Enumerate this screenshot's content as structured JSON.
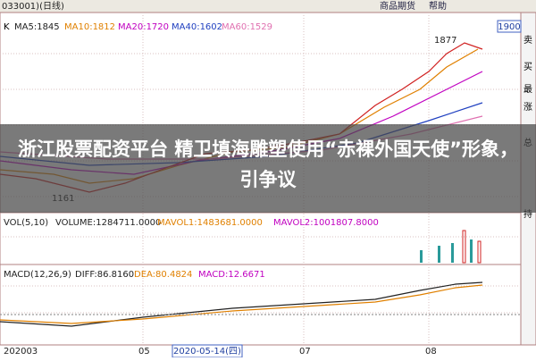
{
  "window": {
    "title": "033001)(日线)",
    "menu": [
      "商品期货",
      "帮助"
    ]
  },
  "price_panel": {
    "indicator": "K",
    "ma": [
      "MA5:1845",
      "MA10:1812",
      "MA20:1720",
      "MA40:1602",
      "MA60:1529"
    ],
    "scale_top": "1900",
    "high_label": "1877",
    "low_label": "1161"
  },
  "side_panel": [
    "卖",
    "买",
    "最",
    "涨",
    "总",
    "持"
  ],
  "banner": {
    "headline": "浙江股票配资平台 精卫填海雕塑使用“赤裸外国天使”形象，引争议"
  },
  "volume_panel": {
    "name": "VOL(5,10)",
    "items": [
      "VOLUME:1284711.0000",
      "MAVOL1:1483681.0000",
      "MAVOL2:1001807.8000"
    ]
  },
  "macd_panel": {
    "name": "MACD(12,26,9)",
    "items": [
      "DIFF:86.8160",
      "DEA:80.4824",
      "MACD:12.6671"
    ]
  },
  "x_axis": [
    "202003",
    "05",
    "2020-05-14(四)",
    "07",
    "08"
  ]
}
